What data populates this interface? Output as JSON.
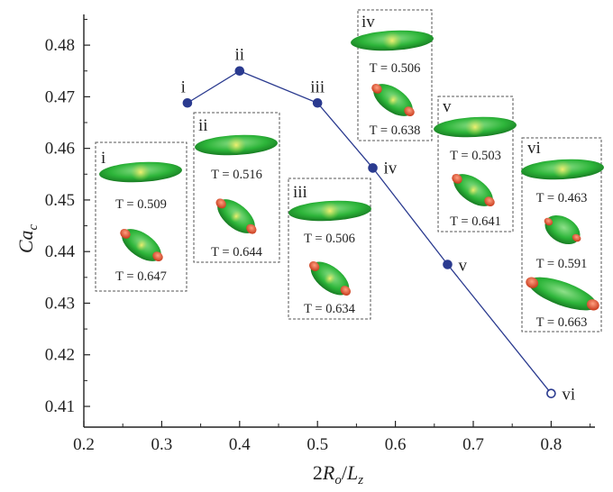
{
  "chart_data": {
    "type": "line",
    "xlabel": "2R_o/L_z",
    "ylabel": "Ca_c",
    "xlim": [
      0.2,
      0.85
    ],
    "ylim": [
      0.405,
      0.49
    ],
    "xticks": [
      "0.2",
      "0.3",
      "0.4",
      "0.5",
      "0.6",
      "0.7",
      "0.8"
    ],
    "yticks": [
      "0.41",
      "0.42",
      "0.43",
      "0.44",
      "0.45",
      "0.46",
      "0.47",
      "0.48"
    ],
    "grid": false,
    "color": "#2a3a8f",
    "series": [
      {
        "x": [
          0.333,
          0.4,
          0.5,
          0.571,
          0.667,
          0.8
        ],
        "y": [
          0.4688,
          0.475,
          0.4688,
          0.4562,
          0.4375,
          0.4125
        ],
        "labels": [
          "i",
          "ii",
          "iii",
          "iv",
          "v",
          "vi"
        ],
        "open_marker_last": true
      }
    ],
    "insets": [
      {
        "label": "i",
        "T": [
          "T = 0.509",
          "T = 0.647"
        ]
      },
      {
        "label": "ii",
        "T": [
          "T = 0.516",
          "T = 0.644"
        ]
      },
      {
        "label": "iii",
        "T": [
          "T = 0.506",
          "T = 0.634"
        ]
      },
      {
        "label": "iv",
        "T": [
          "T = 0.506",
          "T = 0.638"
        ]
      },
      {
        "label": "v",
        "T": [
          "T = 0.503",
          "T = 0.641"
        ]
      },
      {
        "label": "vi",
        "T": [
          "T = 0.463",
          "T = 0.591",
          "T = 0.663"
        ]
      }
    ]
  }
}
